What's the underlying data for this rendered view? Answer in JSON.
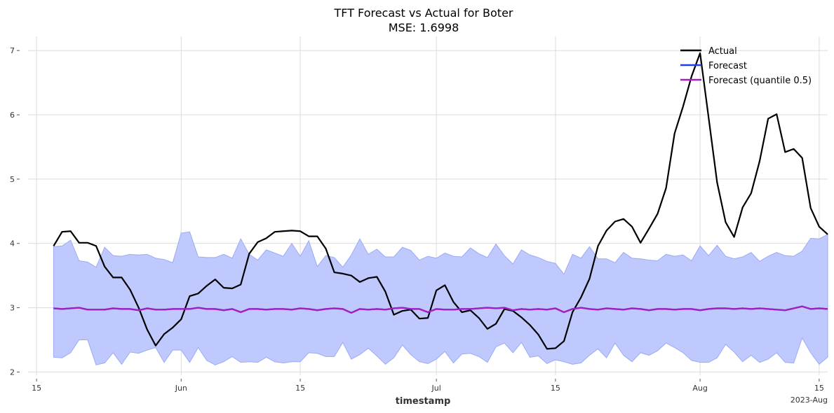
{
  "chart_data": {
    "type": "line",
    "title": "TFT Forecast vs Actual for Boter",
    "subtitle": "MSE: 1.6998",
    "xlabel": "timestamp",
    "ylabel": "",
    "ylim": [
      1.95,
      7.22
    ],
    "xlim": [
      "2023-05-14",
      "2023-08-16"
    ],
    "grid": true,
    "legend_position": "top-right",
    "x_ticks": [
      {
        "label": "15",
        "date": "2023-05-15"
      },
      {
        "label": "Jun",
        "date": "2023-06-01"
      },
      {
        "label": "15",
        "date": "2023-06-15"
      },
      {
        "label": "Jul",
        "date": "2023-07-01"
      },
      {
        "label": "15",
        "date": "2023-07-15"
      },
      {
        "label": "Aug",
        "date": "2023-08-01"
      },
      {
        "label": "15",
        "date": "2023-08-15"
      }
    ],
    "x_corner_label": "2023-Aug",
    "y_ticks": [
      2,
      3,
      4,
      5,
      6,
      7
    ],
    "start_date": "2023-05-17",
    "colors": {
      "actual": "#000000",
      "forecast": "#1f3fdf",
      "median": "#a41fbf",
      "band_fill": "#bfc9fd",
      "band_edge": "#9aabf5"
    },
    "series": [
      {
        "name": "Actual",
        "values": [
          3.96,
          4.18,
          4.19,
          4.01,
          4.01,
          3.96,
          3.64,
          3.47,
          3.47,
          3.28,
          3.0,
          2.66,
          2.41,
          2.59,
          2.69,
          2.82,
          3.18,
          3.22,
          3.34,
          3.44,
          3.31,
          3.3,
          3.36,
          3.84,
          4.02,
          4.08,
          4.18,
          4.19,
          4.2,
          4.19,
          4.11,
          4.11,
          3.92,
          3.55,
          3.53,
          3.5,
          3.4,
          3.46,
          3.48,
          3.25,
          2.89,
          2.95,
          2.97,
          2.83,
          2.84,
          3.27,
          3.35,
          3.09,
          2.93,
          2.96,
          2.84,
          2.67,
          2.75,
          2.98,
          2.95,
          2.85,
          2.73,
          2.58,
          2.36,
          2.37,
          2.48,
          2.93,
          3.16,
          3.45,
          3.96,
          4.2,
          4.34,
          4.38,
          4.26,
          4.01,
          4.23,
          4.46,
          4.86,
          5.71,
          6.13,
          6.6,
          6.96,
          5.96,
          4.95,
          4.33,
          4.1,
          4.56,
          4.78,
          5.28,
          5.94,
          6.01,
          5.42,
          5.47,
          5.33,
          4.55,
          4.26,
          4.14
        ]
      },
      {
        "name": "Forecast",
        "values": [
          2.99,
          2.98,
          2.99,
          3.0,
          2.97,
          2.97,
          2.97,
          2.99,
          2.98,
          2.98,
          2.96,
          2.99,
          2.97,
          2.97,
          2.98,
          2.98,
          2.98,
          3.0,
          2.98,
          2.98,
          2.96,
          2.98,
          2.93,
          2.98,
          2.98,
          2.97,
          2.98,
          2.98,
          2.97,
          2.99,
          2.98,
          2.96,
          2.98,
          2.99,
          2.98,
          2.92,
          2.98,
          2.97,
          2.98,
          2.97,
          2.99,
          3.0,
          2.98,
          2.98,
          2.93,
          2.98,
          2.97,
          2.97,
          2.98,
          2.98,
          2.99,
          3.0,
          2.99,
          3.0,
          2.96,
          2.98,
          2.97,
          2.98,
          2.97,
          2.99,
          2.93,
          2.98,
          3.0,
          2.98,
          2.97,
          2.99,
          2.98,
          2.97,
          2.99,
          2.98,
          2.96,
          2.98,
          2.98,
          2.97,
          2.98,
          2.98,
          2.96,
          2.98,
          2.99,
          2.99,
          2.98,
          2.99,
          2.98,
          2.99,
          2.98,
          2.97,
          2.96,
          2.99,
          3.02,
          2.98,
          2.99,
          2.98
        ]
      },
      {
        "name": "Forecast (quantile 0.5)",
        "values": [
          2.99,
          2.98,
          2.99,
          3.0,
          2.97,
          2.97,
          2.97,
          2.99,
          2.98,
          2.98,
          2.96,
          2.99,
          2.97,
          2.97,
          2.98,
          2.98,
          2.98,
          3.0,
          2.98,
          2.98,
          2.96,
          2.98,
          2.93,
          2.98,
          2.98,
          2.97,
          2.98,
          2.98,
          2.97,
          2.99,
          2.98,
          2.96,
          2.98,
          2.99,
          2.98,
          2.92,
          2.98,
          2.97,
          2.98,
          2.97,
          2.99,
          3.0,
          2.98,
          2.98,
          2.93,
          2.98,
          2.97,
          2.97,
          2.98,
          2.98,
          2.99,
          3.0,
          2.99,
          3.0,
          2.96,
          2.98,
          2.97,
          2.98,
          2.97,
          2.99,
          2.93,
          2.98,
          3.0,
          2.98,
          2.97,
          2.99,
          2.98,
          2.97,
          2.99,
          2.98,
          2.96,
          2.98,
          2.98,
          2.97,
          2.98,
          2.98,
          2.96,
          2.98,
          2.99,
          2.99,
          2.98,
          2.99,
          2.98,
          2.99,
          2.98,
          2.97,
          2.96,
          2.99,
          3.02,
          2.98,
          2.99,
          2.98
        ]
      }
    ],
    "band": {
      "upper": [
        3.95,
        3.96,
        4.05,
        3.73,
        3.71,
        3.63,
        3.94,
        3.81,
        3.8,
        3.83,
        3.82,
        3.83,
        3.77,
        3.75,
        3.7,
        4.16,
        4.18,
        3.79,
        3.78,
        3.78,
        3.83,
        3.77,
        4.07,
        3.83,
        3.74,
        3.9,
        3.85,
        3.8,
        4.0,
        3.8,
        4.04,
        3.64,
        3.81,
        3.78,
        3.63,
        3.82,
        4.07,
        3.83,
        3.91,
        3.79,
        3.79,
        3.94,
        3.89,
        3.74,
        3.8,
        3.77,
        3.85,
        3.8,
        3.79,
        3.93,
        3.84,
        3.78,
        3.99,
        3.81,
        3.68,
        3.9,
        3.82,
        3.78,
        3.72,
        3.69,
        3.52,
        3.83,
        3.77,
        3.95,
        3.76,
        3.76,
        3.7,
        3.86,
        3.77,
        3.76,
        3.74,
        3.73,
        3.83,
        3.8,
        3.82,
        3.73,
        3.96,
        3.81,
        3.97,
        3.8,
        3.76,
        3.79,
        3.86,
        3.72,
        3.8,
        3.86,
        3.81,
        3.8,
        3.88,
        4.08,
        4.07,
        4.14
      ],
      "lower": [
        2.23,
        2.22,
        2.3,
        2.5,
        2.5,
        2.11,
        2.14,
        2.3,
        2.12,
        2.31,
        2.29,
        2.34,
        2.38,
        2.15,
        2.34,
        2.34,
        2.15,
        2.38,
        2.18,
        2.11,
        2.16,
        2.24,
        2.15,
        2.16,
        2.15,
        2.23,
        2.16,
        2.14,
        2.16,
        2.16,
        2.3,
        2.29,
        2.24,
        2.24,
        2.46,
        2.2,
        2.27,
        2.37,
        2.25,
        2.12,
        2.22,
        2.42,
        2.27,
        2.16,
        2.13,
        2.2,
        2.32,
        2.14,
        2.28,
        2.29,
        2.24,
        2.15,
        2.39,
        2.45,
        2.3,
        2.46,
        2.23,
        2.25,
        2.13,
        2.19,
        2.16,
        2.12,
        2.14,
        2.26,
        2.36,
        2.22,
        2.45,
        2.26,
        2.16,
        2.3,
        2.26,
        2.33,
        2.45,
        2.38,
        2.3,
        2.18,
        2.15,
        2.15,
        2.22,
        2.43,
        2.31,
        2.16,
        2.26,
        2.15,
        2.2,
        2.3,
        2.15,
        2.14,
        2.53,
        2.3,
        2.12,
        2.23
      ]
    }
  }
}
